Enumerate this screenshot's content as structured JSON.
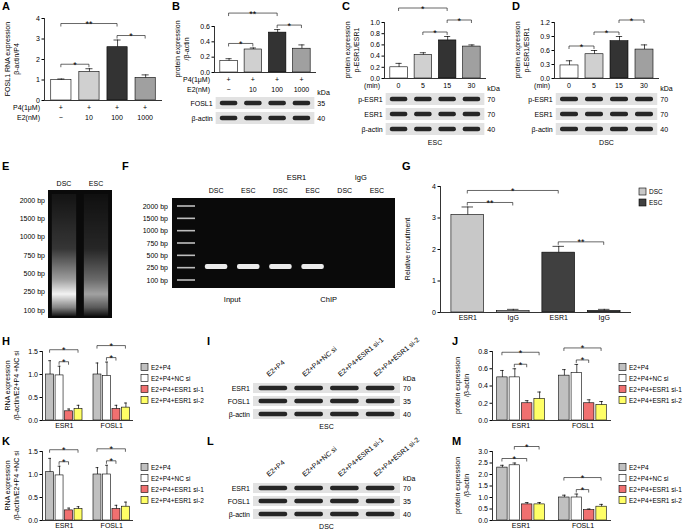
{
  "chart_data": [
    {
      "panel": "A",
      "type": "bar",
      "ylabel": [
        "FOSL1 RNA expression",
        "β-actin/P4"
      ],
      "categories": [
        "−",
        "10",
        "100",
        "1000"
      ],
      "categories_label": "E2(nM)",
      "x_rows": [
        {
          "label": "P4(1μM)",
          "values": [
            "+",
            "+",
            "+",
            "+"
          ]
        }
      ],
      "values": [
        1.0,
        1.4,
        2.6,
        1.1
      ],
      "errors": [
        0.05,
        0.15,
        0.35,
        0.15
      ],
      "colors": [
        "#ffffff",
        "#d0d0d0",
        "#333333",
        "#a0a0a0"
      ],
      "ylim": [
        0,
        4
      ],
      "yticks": [
        0,
        1,
        2,
        3,
        4
      ],
      "significance": [
        {
          "from": 0,
          "to": 1,
          "label": "*"
        },
        {
          "from": 2,
          "to": 3,
          "label": "*"
        },
        {
          "from": 0,
          "to": 2,
          "label": "**"
        }
      ]
    },
    {
      "panel": "B",
      "type": "bar",
      "ylabel": [
        "protein expression",
        "/β-actin"
      ],
      "categories": [
        "−",
        "10",
        "100",
        "1000"
      ],
      "categories_label": "E2(nM)",
      "x_rows": [
        {
          "label": "P4(1μM)",
          "values": [
            "+",
            "+",
            "+",
            "+"
          ]
        }
      ],
      "values": [
        0.15,
        0.3,
        0.52,
        0.31
      ],
      "errors": [
        0.03,
        0.02,
        0.04,
        0.05
      ],
      "colors": [
        "#ffffff",
        "#d0d0d0",
        "#333333",
        "#a0a0a0"
      ],
      "ylim": [
        0,
        0.6
      ],
      "yticks": [
        {
          "value": 0,
          "label": "0.0"
        },
        0.2,
        0.4,
        0.6
      ],
      "significance": [
        {
          "from": 0,
          "to": 1,
          "label": "*"
        },
        {
          "from": 2,
          "to": 3,
          "label": "*"
        },
        {
          "from": 0,
          "to": 2,
          "label": "**"
        }
      ],
      "blot": {
        "rows": [
          {
            "label": "FOSL1",
            "kda": 35
          },
          {
            "label": "β-actin",
            "kda": 40
          }
        ],
        "unit": "kDa"
      }
    },
    {
      "panel": "C",
      "type": "bar",
      "ylabel": [
        "protein expression",
        "p-ESR1/ESR1"
      ],
      "categories": [
        "0",
        "5",
        "15",
        "30"
      ],
      "categories_label": "(min)",
      "values": [
        0.2,
        0.42,
        0.68,
        0.57
      ],
      "errors": [
        0.07,
        0.04,
        0.07,
        0.03
      ],
      "colors": [
        "#ffffff",
        "#d0d0d0",
        "#333333",
        "#a0a0a0"
      ],
      "ylim": [
        0,
        1.0
      ],
      "yticks": [
        {
          "value": 0,
          "label": "0.0"
        },
        0.2,
        0.4,
        0.6,
        0.8,
        {
          "value": 1,
          "label": "1.0"
        }
      ],
      "significance": [
        {
          "from": 1,
          "to": 2,
          "label": "*"
        },
        {
          "from": 2,
          "to": 3,
          "label": "*"
        },
        {
          "from": 0,
          "to": 2,
          "label": "*"
        }
      ],
      "blot": {
        "rows": [
          {
            "label": "p-ESR1",
            "kda": 70
          },
          {
            "label": "ESR1",
            "kda": 70
          },
          {
            "label": "β-actin",
            "kda": 40
          }
        ],
        "unit": "kDa",
        "caption": "ESC"
      }
    },
    {
      "panel": "D",
      "type": "bar",
      "ylabel": [
        "protein expression",
        "p-ESR1/ESR1"
      ],
      "categories": [
        "0",
        "5",
        "15",
        "30"
      ],
      "categories_label": "(min)",
      "values": [
        0.28,
        0.52,
        0.8,
        0.62
      ],
      "errors": [
        0.1,
        0.08,
        0.1,
        0.1
      ],
      "colors": [
        "#ffffff",
        "#d0d0d0",
        "#333333",
        "#a0a0a0"
      ],
      "ylim": [
        0,
        1.2
      ],
      "yticks": [
        {
          "value": 0,
          "label": "0.0"
        },
        0.3,
        0.6,
        0.9,
        1.2
      ],
      "significance": [
        {
          "from": 0,
          "to": 1,
          "label": "*"
        },
        {
          "from": 1,
          "to": 2,
          "label": "*"
        },
        {
          "from": 2,
          "to": 3,
          "label": "*"
        }
      ],
      "blot": {
        "rows": [
          {
            "label": "p-ESR1",
            "kda": 70
          },
          {
            "label": "ESR1",
            "kda": 70
          },
          {
            "label": "β-actin",
            "kda": 40
          }
        ],
        "unit": "kDa",
        "caption": "DSC"
      }
    },
    {
      "panel": "G",
      "type": "bar",
      "ylabel": [
        "Relative recruitment"
      ],
      "categories": [
        "ESR1",
        "IgG",
        "ESR1",
        "IgG"
      ],
      "series": [
        {
          "name": "DSC",
          "color": "#c8c8c8",
          "values": [
            3.1,
            0.05,
            null,
            null
          ],
          "errors": [
            0.25,
            0.05,
            null,
            null
          ]
        },
        {
          "name": "ESC",
          "color": "#404040",
          "values": [
            null,
            null,
            1.9,
            0.05
          ],
          "errors": [
            null,
            null,
            0.2,
            0.05
          ]
        }
      ],
      "ylim": [
        0,
        4
      ],
      "yticks": [
        0,
        1,
        2,
        3,
        4
      ],
      "legend": "top-right",
      "significance": [
        {
          "from": 0,
          "to": 1,
          "label": "**"
        },
        {
          "from": 2,
          "to": 3,
          "label": "**"
        },
        {
          "from": 0,
          "to": 2,
          "label": "*"
        }
      ]
    },
    {
      "panel": "H",
      "type": "bar",
      "ylabel": [
        "RNA expression",
        "/β-actin/E2+P4 +NC si"
      ],
      "categories": [
        "ESR1",
        "FOSL1"
      ],
      "series": [
        {
          "name": "E2+P4",
          "color": "#c0c0c0",
          "values": [
            1.0,
            1.0
          ],
          "errors": [
            0.3,
            0.25
          ]
        },
        {
          "name": "E2+P4+NC si",
          "color": "#ffffff",
          "values": [
            0.98,
            0.97
          ],
          "errors": [
            0.2,
            0.3
          ]
        },
        {
          "name": "E2+P4+ESR1 si-1",
          "color": "#f07070",
          "values": [
            0.2,
            0.25
          ],
          "errors": [
            0.05,
            0.08
          ]
        },
        {
          "name": "E2+P4+ESR1 si-2",
          "color": "#ffff66",
          "values": [
            0.25,
            0.28
          ],
          "errors": [
            0.08,
            0.1
          ]
        }
      ],
      "ylim": [
        0,
        1.5
      ],
      "yticks": [
        {
          "value": 0,
          "label": "0.0"
        },
        0.5,
        {
          "value": 1,
          "label": "1.0"
        },
        1.5
      ],
      "legend": "right",
      "significance": [
        {
          "category": 0,
          "from": 1,
          "to": 2,
          "label": "*"
        },
        {
          "category": 0,
          "from": 0,
          "to": 3,
          "label": "*"
        },
        {
          "category": 1,
          "from": 1,
          "to": 2,
          "label": "*"
        },
        {
          "category": 1,
          "from": 0,
          "to": 3,
          "label": "*"
        }
      ]
    },
    {
      "panel": "J",
      "type": "bar",
      "ylabel": [
        "protein expression",
        "/β-actin"
      ],
      "categories": [
        "ESR1",
        "FOSL1"
      ],
      "series": [
        {
          "name": "E2+P4",
          "color": "#c0c0c0",
          "values": [
            0.5,
            0.52
          ],
          "errors": [
            0.08,
            0.07
          ]
        },
        {
          "name": "E2+P4+NC si",
          "color": "#ffffff",
          "values": [
            0.5,
            0.55
          ],
          "errors": [
            0.1,
            0.1
          ]
        },
        {
          "name": "E2+P4+ESR1 si-1",
          "color": "#f07070",
          "values": [
            0.2,
            0.2
          ],
          "errors": [
            0.03,
            0.04
          ]
        },
        {
          "name": "E2+P4+ESR1 si-2",
          "color": "#ffff66",
          "values": [
            0.25,
            0.18
          ],
          "errors": [
            0.08,
            0.04
          ]
        }
      ],
      "ylim": [
        0,
        0.8
      ],
      "yticks": [
        {
          "value": 0,
          "label": "0.0"
        },
        0.2,
        0.4,
        0.6,
        0.8
      ],
      "legend": "right",
      "significance": [
        {
          "category": 0,
          "from": 1,
          "to": 2,
          "label": "*"
        },
        {
          "category": 0,
          "from": 0,
          "to": 3,
          "label": "*"
        },
        {
          "category": 1,
          "from": 1,
          "to": 2,
          "label": "*"
        },
        {
          "category": 1,
          "from": 0,
          "to": 3,
          "label": "*"
        }
      ]
    },
    {
      "panel": "K",
      "type": "bar",
      "ylabel": [
        "RNA expression",
        "/β-actin/E2+P4 +NC si"
      ],
      "categories": [
        "ESR1",
        "FOSL1"
      ],
      "series": [
        {
          "name": "E2+P4",
          "color": "#c0c0c0",
          "values": [
            1.05,
            1.0
          ],
          "errors": [
            0.3,
            0.15
          ]
        },
        {
          "name": "E2+P4+NC si",
          "color": "#ffffff",
          "values": [
            0.98,
            1.0
          ],
          "errors": [
            0.2,
            0.2
          ]
        },
        {
          "name": "E2+P4+ESR1 si-1",
          "color": "#f07070",
          "values": [
            0.22,
            0.25
          ],
          "errors": [
            0.05,
            0.08
          ]
        },
        {
          "name": "E2+P4+ESR1 si-2",
          "color": "#ffff66",
          "values": [
            0.25,
            0.3
          ],
          "errors": [
            0.05,
            0.1
          ]
        }
      ],
      "ylim": [
        0,
        1.5
      ],
      "yticks": [
        {
          "value": 0,
          "label": "0.0"
        },
        0.5,
        {
          "value": 1,
          "label": "1.0"
        },
        1.5
      ],
      "legend": "right",
      "significance": [
        {
          "category": 0,
          "from": 1,
          "to": 2,
          "label": "*"
        },
        {
          "category": 0,
          "from": 0,
          "to": 3,
          "label": "*"
        },
        {
          "category": 1,
          "from": 1,
          "to": 2,
          "label": "*"
        },
        {
          "category": 1,
          "from": 0,
          "to": 3,
          "label": "*"
        }
      ]
    },
    {
      "panel": "M",
      "type": "bar",
      "ylabel": [
        "protein expression",
        "/β-actin"
      ],
      "categories": [
        "ESR1",
        "FOSL1"
      ],
      "series": [
        {
          "name": "E2+P4",
          "color": "#c0c0c0",
          "values": [
            2.3,
            1.0
          ],
          "errors": [
            0.1,
            0.1
          ]
        },
        {
          "name": "E2+P4+NC si",
          "color": "#ffffff",
          "values": [
            2.4,
            1.0
          ],
          "errors": [
            0.1,
            0.15
          ]
        },
        {
          "name": "E2+P4+ESR1 si-1",
          "color": "#f07070",
          "values": [
            0.7,
            0.45
          ],
          "errors": [
            0.08,
            0.05
          ]
        },
        {
          "name": "E2+P4+ESR1 si-2",
          "color": "#ffff66",
          "values": [
            0.7,
            0.6
          ],
          "errors": [
            0.08,
            0.1
          ]
        }
      ],
      "ylim": [
        0,
        3
      ],
      "yticks": [
        {
          "value": 0,
          "label": "0.0"
        },
        0.5,
        {
          "value": 1,
          "label": "1.0"
        },
        1.5,
        {
          "value": 2,
          "label": "2.0"
        },
        2.5,
        {
          "value": 3,
          "label": "3.0"
        }
      ],
      "legend": "right",
      "significance": [
        {
          "category": 0,
          "from": 0,
          "to": 2,
          "label": "*"
        },
        {
          "category": 0,
          "from": 1,
          "to": 3,
          "label": "*"
        },
        {
          "category": 1,
          "from": 1,
          "to": 2,
          "label": "*"
        },
        {
          "category": 1,
          "from": 0,
          "to": 3,
          "label": "*"
        }
      ]
    }
  ],
  "panels": [
    {
      "panel": "E",
      "type": "gel",
      "ladder": [
        "2000 bp",
        "1500 bp",
        "1000 bp",
        "750 bp",
        "500 bp",
        "250 bp",
        "100 bp"
      ],
      "lanes": [
        "DSC",
        "ESC"
      ]
    },
    {
      "panel": "F",
      "type": "gel",
      "ladder": [
        "2000 bp",
        "1500 bp",
        "1000 bp",
        "750 bp",
        "500 bp",
        "250 bp",
        "100 bp"
      ],
      "lanes": [
        "DSC",
        "ESC",
        "DSC",
        "ESC",
        "DSC",
        "ESC"
      ],
      "bands": [
        true,
        true,
        true,
        true,
        false,
        false
      ],
      "groups_above": [
        {
          "label": "ESR1",
          "lanes": [
            2,
            3
          ]
        },
        {
          "label": "IgG",
          "lanes": [
            4,
            5
          ]
        }
      ],
      "groups_below": [
        {
          "label": "Input",
          "lanes": [
            0,
            1
          ]
        },
        {
          "label": "ChIP",
          "lanes": [
            2,
            5
          ]
        }
      ]
    },
    {
      "panel": "I",
      "type": "blot",
      "lanes": [
        "E2+P4",
        "E2+P4+NC si",
        "E2+P4+ESR1 si-1",
        "E2+P4+ESR1 si-2"
      ],
      "rows": [
        {
          "label": "ESR1",
          "kda": 70
        },
        {
          "label": "FOSL1",
          "kda": 35
        },
        {
          "label": "β-actin",
          "kda": 40
        }
      ],
      "unit": "kDa",
      "caption": "ESC"
    },
    {
      "panel": "L",
      "type": "blot",
      "lanes": [
        "E2+P4",
        "E2+P4+NC si",
        "E2+P4+ESR1 si-1",
        "E2+P4+ESR1 si-2"
      ],
      "rows": [
        {
          "label": "ESR1",
          "kda": 70
        },
        {
          "label": "FOSL1",
          "kda": 35
        },
        {
          "label": "β-actin",
          "kda": 40
        }
      ],
      "unit": "kDa",
      "caption": "DSC"
    }
  ]
}
